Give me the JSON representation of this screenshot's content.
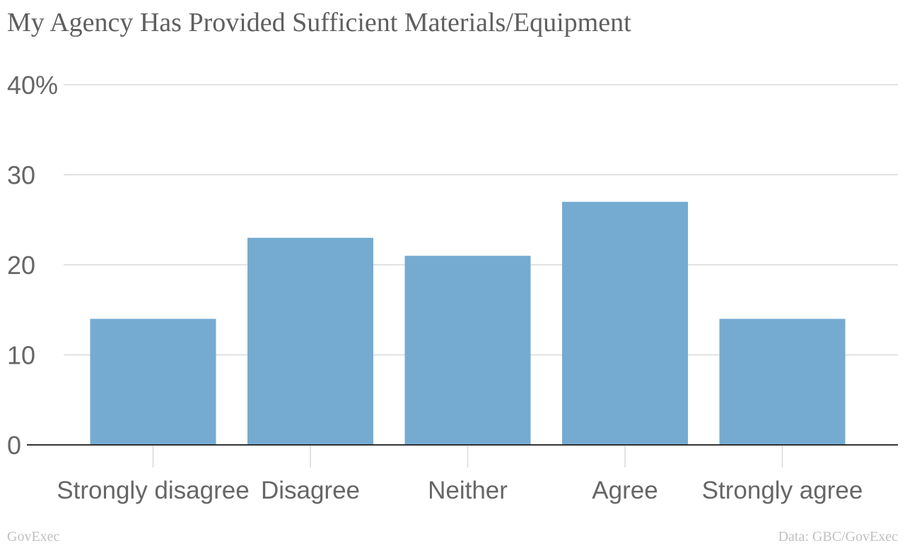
{
  "chart_data": {
    "type": "bar",
    "title": "My Agency Has Provided Sufficient Materials/Equipment",
    "categories": [
      "Strongly disagree",
      "Disagree",
      "Neither",
      "Agree",
      "Strongly agree"
    ],
    "values": [
      14,
      23,
      21,
      27,
      14
    ],
    "ylim": [
      0,
      40
    ],
    "yticks": [
      0,
      10,
      20,
      30,
      40
    ],
    "ytick_labels": [
      "0",
      "10",
      "20",
      "30",
      "40%"
    ],
    "xlabel": "",
    "ylabel": "",
    "grid": true,
    "bar_color": "#75abd1"
  },
  "footer": {
    "left": "GovExec",
    "right": "Data: GBC/GovExec"
  }
}
